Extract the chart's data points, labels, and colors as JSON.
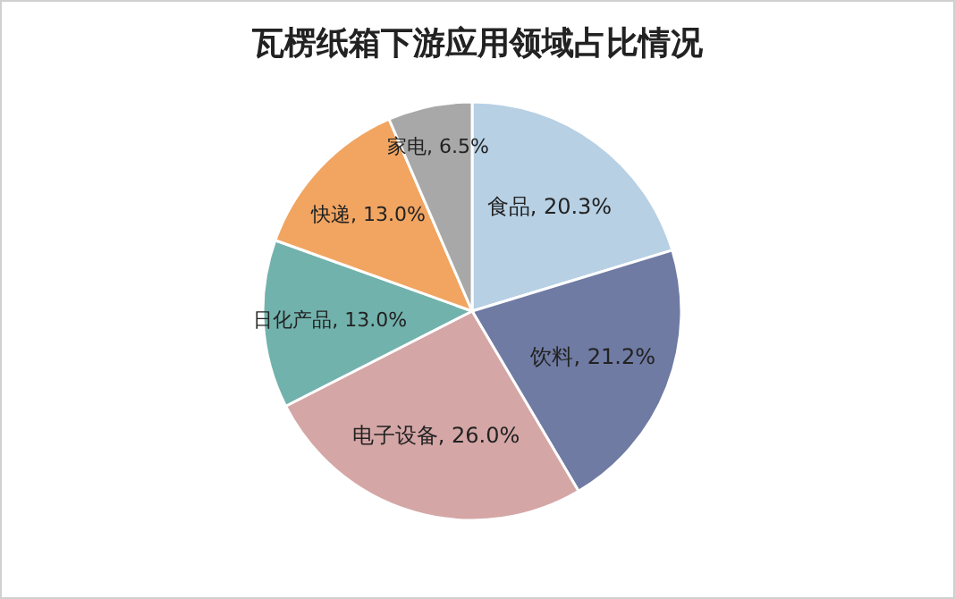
{
  "chart_data": {
    "type": "pie",
    "title": "瓦楞纸箱下游应用领域占比情况",
    "categories": [
      "食品",
      "饮料",
      "电子设备",
      "日化产品",
      "快递",
      "家电"
    ],
    "values": [
      20.3,
      21.2,
      26.0,
      13.0,
      13.0,
      6.5
    ],
    "colors": [
      "#b7d0e4",
      "#6f7ba3",
      "#d5a6a6",
      "#72b2ad",
      "#f1a561",
      "#a8a8a8"
    ],
    "value_labels": [
      "20.3%",
      "21.2%",
      "26.0%",
      "13.0%",
      "13.0%",
      "6.5%"
    ]
  }
}
